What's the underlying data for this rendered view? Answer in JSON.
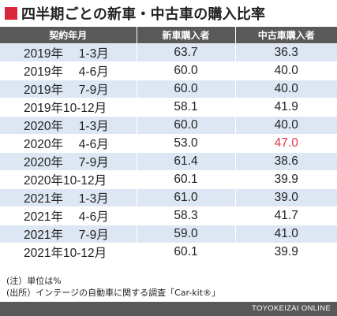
{
  "title": "四半期ごとの新車・中古車の購入比率",
  "accent_color": "#d9283b",
  "highlight_color": "#e8353f",
  "table": {
    "headers": [
      "契約年月",
      "新車購入者",
      "中古車購入者"
    ],
    "rows": [
      {
        "period": "2019年　 1-3月",
        "new": "63.7",
        "used": "36.3"
      },
      {
        "period": "2019年　 4-6月",
        "new": "60.0",
        "used": "40.0"
      },
      {
        "period": "2019年　 7-9月",
        "new": "60.0",
        "used": "40.0"
      },
      {
        "period": "2019年10-12月",
        "new": "58.1",
        "used": "41.9"
      },
      {
        "period": "2020年　 1-3月",
        "new": "60.0",
        "used": "40.0"
      },
      {
        "period": "2020年　 4-6月",
        "new": "53.0",
        "used": "47.0"
      },
      {
        "period": "2020年　 7-9月",
        "new": "61.4",
        "used": "38.6"
      },
      {
        "period": "2020年10-12月",
        "new": "60.1",
        "used": "39.9"
      },
      {
        "period": "2021年　 1-3月",
        "new": "61.0",
        "used": "39.0"
      },
      {
        "period": "2021年　 4-6月",
        "new": "58.3",
        "used": "41.7"
      },
      {
        "period": "2021年　 7-9月",
        "new": "59.0",
        "used": "41.0"
      },
      {
        "period": "2021年10-12月",
        "new": "60.1",
        "used": "39.9"
      }
    ]
  },
  "notes": [
    "(注）単位は%",
    "(出所）インテージの自動車に関する調査「Car-kit®」"
  ],
  "brand": "TOYOKEIZAI ONLINE"
}
